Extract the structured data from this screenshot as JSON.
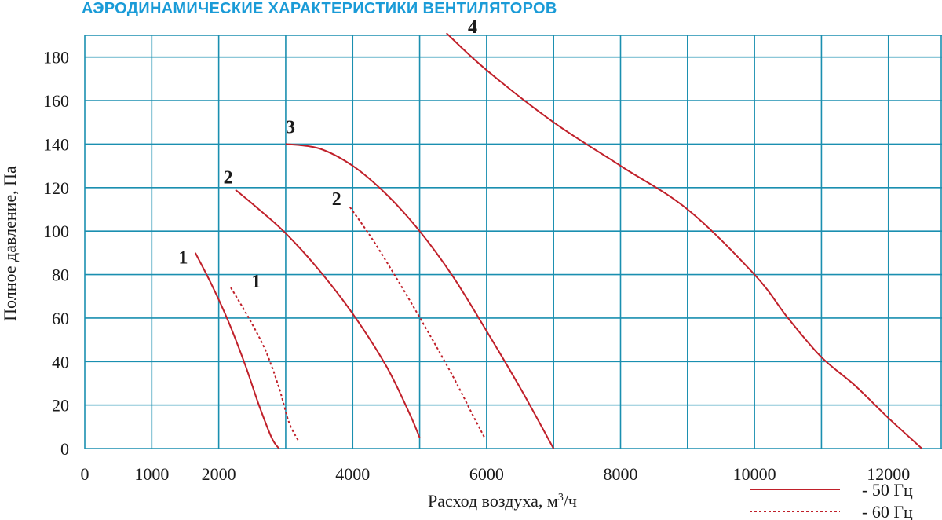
{
  "chart_data": {
    "type": "line",
    "title": "АЭРОДИНАМИЧЕСКИЕ ХАРАКТЕРИСТИКИ ВЕНТИЛЯТОРОВ",
    "xlabel": "Расход воздуха, м",
    "xlabel_sup": "3",
    "xlabel_suffix": "/ч",
    "ylabel": "Полное давление, Па",
    "xlim": [
      0,
      12800
    ],
    "ylim": [
      0,
      190
    ],
    "x_ticks": [
      "0",
      "1000",
      "2000",
      "4000",
      "6000",
      "8000",
      "10000",
      "12000"
    ],
    "x_tick_values": [
      0,
      1000,
      2000,
      4000,
      6000,
      8000,
      10000,
      12000
    ],
    "y_ticks": [
      "0",
      "20",
      "40",
      "60",
      "80",
      "100",
      "120",
      "140",
      "160",
      "180"
    ],
    "y_tick_values": [
      0,
      20,
      40,
      60,
      80,
      100,
      120,
      140,
      160,
      180
    ],
    "grid": true,
    "grid_color": "#1a8fb0",
    "series_color": "#c0202a",
    "series": [
      {
        "label": "1",
        "hz": "50",
        "style": "solid",
        "label_at": [
          1400,
          85
        ],
        "points": [
          [
            1650,
            90
          ],
          [
            1900,
            75
          ],
          [
            2150,
            58
          ],
          [
            2400,
            38
          ],
          [
            2600,
            20
          ],
          [
            2790,
            5
          ],
          [
            2900,
            0
          ]
        ]
      },
      {
        "label": "1",
        "hz": "60",
        "style": "dashed",
        "label_at": [
          2490,
          74
        ],
        "points": [
          [
            2180,
            74
          ],
          [
            2450,
            60
          ],
          [
            2700,
            45
          ],
          [
            2900,
            28
          ],
          [
            3050,
            12
          ],
          [
            3200,
            3
          ]
        ]
      },
      {
        "label": "2",
        "hz": "50",
        "style": "solid",
        "label_at": [
          2070,
          122
        ],
        "points": [
          [
            2250,
            119
          ],
          [
            2600,
            110
          ],
          [
            3000,
            99
          ],
          [
            3500,
            82
          ],
          [
            4000,
            62
          ],
          [
            4500,
            38
          ],
          [
            4850,
            16
          ],
          [
            5000,
            5
          ]
        ]
      },
      {
        "label": "2",
        "hz": "60",
        "style": "dashed",
        "label_at": [
          3690,
          112
        ],
        "points": [
          [
            3960,
            111
          ],
          [
            4300,
            96
          ],
          [
            4700,
            76
          ],
          [
            5100,
            55
          ],
          [
            5500,
            33
          ],
          [
            5800,
            15
          ],
          [
            5970,
            5
          ]
        ]
      },
      {
        "label": "3",
        "hz": "50",
        "style": "solid",
        "label_at": [
          3000,
          145
        ],
        "points": [
          [
            3000,
            140
          ],
          [
            3500,
            138
          ],
          [
            4000,
            130
          ],
          [
            4500,
            117
          ],
          [
            5000,
            100
          ],
          [
            5500,
            79
          ],
          [
            6000,
            54
          ],
          [
            6500,
            28
          ],
          [
            7000,
            0
          ]
        ]
      },
      {
        "label": "4",
        "hz": "50",
        "style": "solid",
        "label_at": [
          5720,
          191
        ],
        "points": [
          [
            5400,
            191
          ],
          [
            6000,
            174
          ],
          [
            7000,
            150
          ],
          [
            8000,
            130
          ],
          [
            9000,
            110
          ],
          [
            10000,
            80
          ],
          [
            10500,
            60
          ],
          [
            11000,
            42
          ],
          [
            11500,
            29
          ],
          [
            12000,
            14
          ],
          [
            12500,
            0
          ]
        ]
      }
    ],
    "legend": [
      {
        "style": "solid",
        "text": "- 50 Гц"
      },
      {
        "style": "dashed",
        "text": "- 60 Гц"
      }
    ]
  }
}
